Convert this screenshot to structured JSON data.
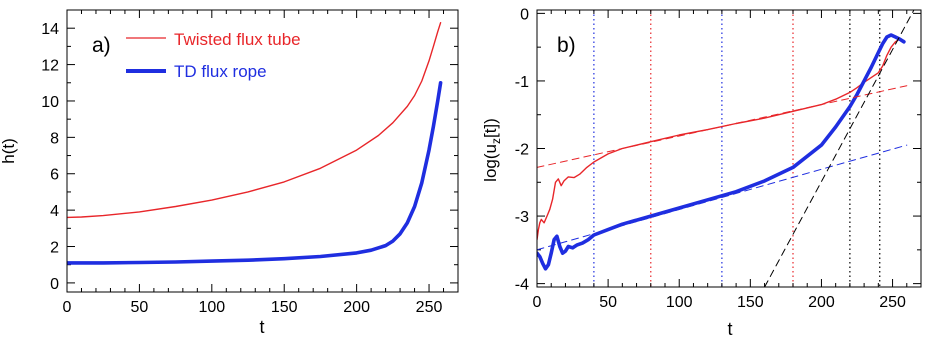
{
  "chart_data": [
    {
      "type": "line",
      "panel_label": "a)",
      "xlabel": "t",
      "ylabel": "h(t)",
      "xlim": [
        0,
        270
      ],
      "ylim": [
        -0.5,
        15
      ],
      "x_ticks": [
        0,
        50,
        100,
        150,
        200,
        250
      ],
      "y_ticks": [
        0,
        2,
        4,
        6,
        8,
        10,
        12,
        14
      ],
      "legend": "top-left",
      "series": [
        {
          "name": "Twisted flux tube",
          "color": "#e8262a",
          "style": "thin",
          "x": [
            0,
            10,
            25,
            50,
            75,
            100,
            125,
            150,
            175,
            200,
            215,
            225,
            235,
            240,
            245,
            250,
            253,
            256,
            258
          ],
          "y": [
            3.6,
            3.62,
            3.7,
            3.9,
            4.2,
            4.55,
            5.0,
            5.55,
            6.3,
            7.3,
            8.1,
            8.8,
            9.7,
            10.3,
            11.1,
            12.2,
            13.0,
            13.8,
            14.3
          ]
        },
        {
          "name": "TD flux rope",
          "color": "#1f2ee0",
          "style": "thick",
          "x": [
            0,
            25,
            50,
            75,
            100,
            125,
            150,
            175,
            200,
            210,
            220,
            225,
            230,
            235,
            240,
            245,
            250,
            253,
            256,
            258
          ],
          "y": [
            1.1,
            1.1,
            1.12,
            1.15,
            1.2,
            1.25,
            1.33,
            1.45,
            1.65,
            1.8,
            2.05,
            2.3,
            2.7,
            3.3,
            4.2,
            5.5,
            7.3,
            8.6,
            10.0,
            11.0
          ]
        }
      ]
    },
    {
      "type": "line",
      "panel_label": "b)",
      "xlabel": "t",
      "ylabel": "log(u",
      "ylabel_sub": "z",
      "ylabel_tail": "[t])",
      "xlim": [
        0,
        270
      ],
      "ylim": [
        -4.05,
        0.05
      ],
      "x_ticks": [
        0,
        50,
        100,
        150,
        200,
        250
      ],
      "y_ticks": [
        0,
        -1,
        -2,
        -3,
        -4
      ],
      "series": [
        {
          "color": "#e8262a",
          "style": "thin",
          "x": [
            0,
            1,
            2,
            3,
            5,
            7,
            9,
            11,
            13,
            15,
            17,
            19,
            22,
            26,
            30,
            35,
            40,
            50,
            60,
            80,
            100,
            120,
            140,
            160,
            180,
            200,
            210,
            220,
            225,
            230,
            235,
            240,
            243,
            246,
            249,
            252,
            255,
            258
          ],
          "y": [
            -3.35,
            -3.2,
            -3.1,
            -3.05,
            -3.1,
            -3.0,
            -2.9,
            -2.75,
            -2.5,
            -2.45,
            -2.55,
            -2.48,
            -2.42,
            -2.43,
            -2.38,
            -2.28,
            -2.2,
            -2.08,
            -2.0,
            -1.9,
            -1.8,
            -1.72,
            -1.63,
            -1.55,
            -1.45,
            -1.35,
            -1.27,
            -1.17,
            -1.1,
            -1.02,
            -0.95,
            -0.88,
            -0.78,
            -0.62,
            -0.5,
            -0.42,
            -0.38,
            -0.4
          ]
        },
        {
          "color": "#1f2ee0",
          "style": "thick",
          "x": [
            0,
            2,
            4,
            6,
            8,
            10,
            12,
            14,
            16,
            18,
            20,
            22,
            25,
            28,
            32,
            36,
            40,
            50,
            60,
            80,
            100,
            120,
            140,
            160,
            180,
            200,
            210,
            220,
            225,
            230,
            235,
            240,
            243,
            246,
            249,
            252,
            255,
            258
          ],
          "y": [
            -3.55,
            -3.6,
            -3.7,
            -3.78,
            -3.72,
            -3.55,
            -3.35,
            -3.3,
            -3.45,
            -3.55,
            -3.52,
            -3.45,
            -3.47,
            -3.43,
            -3.4,
            -3.35,
            -3.28,
            -3.2,
            -3.12,
            -3.0,
            -2.88,
            -2.76,
            -2.64,
            -2.48,
            -2.28,
            -1.95,
            -1.68,
            -1.38,
            -1.2,
            -1.0,
            -0.8,
            -0.58,
            -0.45,
            -0.35,
            -0.32,
            -0.35,
            -0.38,
            -0.42
          ]
        },
        {
          "color": "#e8262a",
          "style": "dashed",
          "x": [
            0,
            260
          ],
          "y": [
            -2.28,
            -1.07
          ]
        },
        {
          "color": "#1f2ee0",
          "style": "dashed",
          "x": [
            0,
            260
          ],
          "y": [
            -3.5,
            -1.95
          ]
        },
        {
          "color": "#000000",
          "style": "dashed",
          "x": [
            160,
            265
          ],
          "y": [
            -4.05,
            0.05
          ]
        }
      ],
      "vertical_markers": [
        {
          "x": 40,
          "color": "#1f2ee0"
        },
        {
          "x": 80,
          "color": "#e8262a"
        },
        {
          "x": 130,
          "color": "#1f2ee0"
        },
        {
          "x": 180,
          "color": "#e8262a"
        },
        {
          "x": 220,
          "color": "#000000"
        },
        {
          "x": 241,
          "color": "#000000"
        }
      ]
    }
  ]
}
